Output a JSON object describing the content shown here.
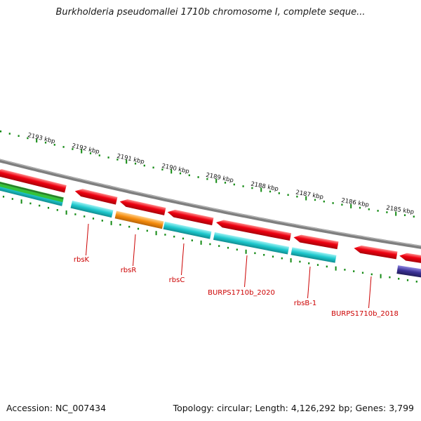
{
  "title": "Burkholderia pseudomallei 1710b chromosome I, complete seque...",
  "footer": {
    "accession_label": "Accession:",
    "accession": "NC_007434",
    "topology_label": "Topology:",
    "topology": "circular",
    "length_label": "Length:",
    "length": "4,126,292 bp",
    "genes_label": "Genes:",
    "genes": "3,799"
  },
  "colors": {
    "cds_forward": "#e8000b",
    "cds_reverse": "#19c4c9",
    "rrna_gene": "#f58b0c",
    "other_feature_left": "#34c23a",
    "other_feature_right": "#3b3196",
    "backbone": "#7f7f7f",
    "ticks": "#138a13",
    "gene_labels": "#cc0000"
  },
  "ruler": {
    "unit": "kbp",
    "ticks": [
      "2193 kbp",
      "2192 kbp",
      "2191 kbp",
      "2190 kbp",
      "2189 kbp",
      "2188 kbp",
      "2187 kbp",
      "2186 kbp",
      "2185 kbp"
    ]
  },
  "gene_labels": [
    "rbsK",
    "rbsR",
    "rbsC",
    "BURPS1710b_2020",
    "rbsB-1",
    "BURPS1710b_2018"
  ]
}
